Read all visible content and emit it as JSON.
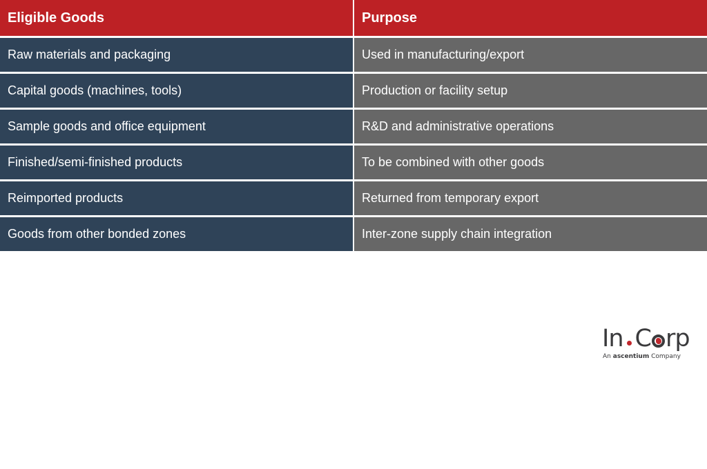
{
  "colors": {
    "header_bg": "#bd2125",
    "left_col_bg": "#2f4358",
    "right_col_bg": "#676767",
    "logo_accent": "#c1272d",
    "logo_text": "#3a3a3c"
  },
  "table": {
    "headers": [
      "Eligible Goods",
      "Purpose"
    ],
    "rows": [
      [
        "Raw materials and packaging",
        "Used in manufacturing/export"
      ],
      [
        "Capital goods (machines, tools)",
        "Production or facility setup"
      ],
      [
        "Sample goods and office equipment",
        "R&D and administrative operations"
      ],
      [
        "Finished/semi-finished products",
        "To be combined with other goods"
      ],
      [
        "Reimported products",
        "Returned from temporary export"
      ],
      [
        "Goods from other bonded zones",
        "Inter-zone supply chain integration"
      ]
    ]
  },
  "logo": {
    "part1": "In",
    "part2": "C",
    "part3": "rp",
    "tagline_prefix": "An",
    "tagline_brand": "ascentium",
    "tagline_suffix": "Company",
    "globe_icon": "globe-icon"
  }
}
